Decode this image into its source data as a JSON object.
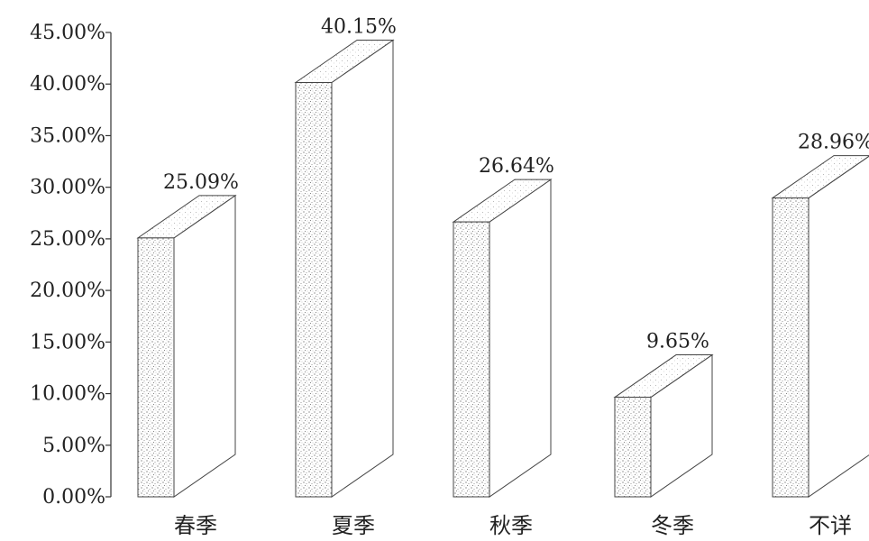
{
  "chart_data": {
    "type": "bar",
    "style": "3d",
    "categories": [
      "春季",
      "夏季",
      "秋季",
      "冬季",
      "不详"
    ],
    "values": [
      25.09,
      40.15,
      26.64,
      9.65,
      28.96
    ],
    "data_labels": [
      "25.09%",
      "40.15%",
      "26.64%",
      "9.65%",
      "28.96%"
    ],
    "y_ticks": [
      "0.00%",
      "5.00%",
      "10.00%",
      "15.00%",
      "20.00%",
      "25.00%",
      "30.00%",
      "35.00%",
      "40.00%",
      "45.00%"
    ],
    "ylim": [
      0,
      45
    ],
    "grid": false,
    "title": "",
    "xlabel": "",
    "ylabel": ""
  }
}
